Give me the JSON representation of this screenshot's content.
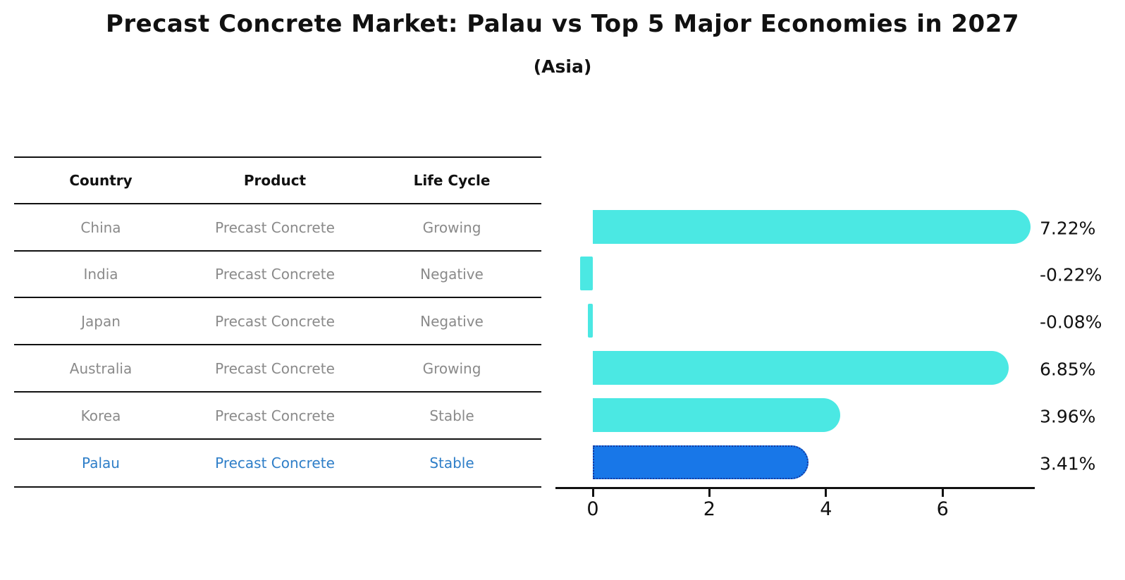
{
  "title": "Precast Concrete Market: Palau vs Top 5 Major Economies in 2027",
  "subtitle": "(Asia)",
  "table": {
    "headers": [
      "Country",
      "Product",
      "Life Cycle"
    ],
    "rows": [
      {
        "country": "China",
        "product": "Precast Concrete",
        "life_cycle": "Growing"
      },
      {
        "country": "India",
        "product": "Precast Concrete",
        "life_cycle": "Negative"
      },
      {
        "country": "Japan",
        "product": "Precast Concrete",
        "life_cycle": "Negative"
      },
      {
        "country": "Australia",
        "product": "Precast Concrete",
        "life_cycle": "Growing"
      },
      {
        "country": "Korea",
        "product": "Precast Concrete",
        "life_cycle": "Stable"
      },
      {
        "country": "Palau",
        "product": "Precast Concrete",
        "life_cycle": "Stable"
      }
    ],
    "highlight_index": 5,
    "highlight_text_color": "#2e7ec8"
  },
  "chart_data": {
    "type": "bar",
    "orientation": "horizontal",
    "categories": [
      "China",
      "India",
      "Japan",
      "Australia",
      "Korea",
      "Palau"
    ],
    "values": [
      7.22,
      -0.22,
      -0.08,
      6.85,
      3.96,
      3.41
    ],
    "value_labels": [
      "7.22%",
      "-0.22%",
      "-0.08%",
      "6.85%",
      "3.96%",
      "3.41%"
    ],
    "xticks": [
      0,
      2,
      4,
      6
    ],
    "xtick_labels": [
      "0",
      "2",
      "4",
      "6"
    ],
    "xlim": [
      -0.62,
      7.58
    ],
    "grid": false,
    "legend": false,
    "bar_color": "#4be8e3",
    "highlight_color": "#1877e8",
    "highlight_border_color": "#16399f",
    "highlight_index": 5,
    "title": "Precast Concrete Market: Palau vs Top 5 Major Economies in 2027",
    "subtitle": "(Asia)",
    "ylabel": "",
    "xlabel": ""
  }
}
